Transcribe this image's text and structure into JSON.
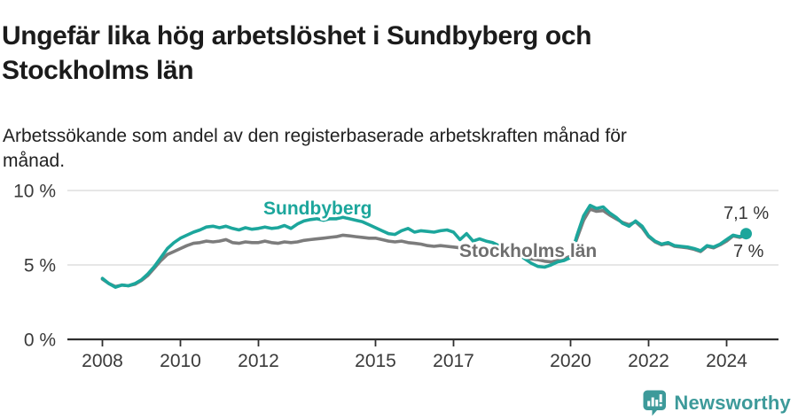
{
  "header": {
    "title_line1": "Ungefär lika hög arbetslöshet i Sundbyberg och",
    "title_line2": "Stockholms län",
    "subtitle_line1": "Arbetssökande som andel av den registerbaserade arbetskraften månad för",
    "subtitle_line2": "månad."
  },
  "footer": {
    "brand": "Newsworthy",
    "brand_color": "#3d9a9a"
  },
  "chart_data": {
    "type": "line",
    "title": "Ungefär lika hög arbetslöshet i Sundbyberg och Stockholms län",
    "subtitle": "Arbetssökande som andel av den registerbaserade arbetskraften månad för månad.",
    "unit": "%",
    "x_start": 2008.0,
    "x_step_years": 0.1666667,
    "x_end": 2024.5,
    "ylim": [
      0,
      10.5
    ],
    "grid": "horizontal",
    "legend_position": "inline-labels",
    "x_ticks": [
      2008,
      2010,
      2012,
      2015,
      2017,
      2020,
      2022,
      2024
    ],
    "y_ticks": [
      {
        "value": 10,
        "label": "10 %"
      },
      {
        "value": 5,
        "label": "5 %"
      },
      {
        "value": 0,
        "label": "0 %"
      }
    ],
    "series": [
      {
        "name": "Sundbyberg",
        "color": "#1ca69c",
        "end_label": "7,1 %",
        "end_value": 7.1,
        "values": [
          4.1,
          3.75,
          3.5,
          3.65,
          3.6,
          3.75,
          4.0,
          4.4,
          4.9,
          5.5,
          6.1,
          6.5,
          6.8,
          7.0,
          7.2,
          7.35,
          7.55,
          7.6,
          7.5,
          7.6,
          7.45,
          7.35,
          7.5,
          7.4,
          7.45,
          7.55,
          7.45,
          7.5,
          7.65,
          7.45,
          7.75,
          7.95,
          8.05,
          8.1,
          8.0,
          8.1,
          8.1,
          8.2,
          8.1,
          8.0,
          7.9,
          7.7,
          7.5,
          7.3,
          7.1,
          7.05,
          7.3,
          7.45,
          7.2,
          7.3,
          7.25,
          7.2,
          7.3,
          7.35,
          7.2,
          6.7,
          7.1,
          6.6,
          6.75,
          6.6,
          6.5,
          6.3,
          6.2,
          6.0,
          5.7,
          5.4,
          5.1,
          4.9,
          4.85,
          5.0,
          5.2,
          5.3,
          5.5,
          7.0,
          8.3,
          9.0,
          8.8,
          8.9,
          8.5,
          8.2,
          7.8,
          7.6,
          7.95,
          7.6,
          6.95,
          6.6,
          6.4,
          6.5,
          6.3,
          6.25,
          6.2,
          6.1,
          5.95,
          6.3,
          6.2,
          6.4,
          6.7,
          7.0,
          6.9,
          7.1
        ]
      },
      {
        "name": "Stockholms län",
        "color": "#7c7c7c",
        "label_color": "#6f6f6f",
        "end_label": "7 %",
        "end_value": 7.0,
        "values": [
          4.05,
          3.75,
          3.55,
          3.65,
          3.6,
          3.7,
          3.95,
          4.3,
          4.8,
          5.3,
          5.7,
          5.9,
          6.1,
          6.3,
          6.45,
          6.5,
          6.6,
          6.55,
          6.6,
          6.7,
          6.5,
          6.45,
          6.55,
          6.5,
          6.5,
          6.6,
          6.5,
          6.45,
          6.55,
          6.5,
          6.55,
          6.65,
          6.7,
          6.75,
          6.8,
          6.85,
          6.9,
          7.0,
          6.95,
          6.9,
          6.85,
          6.8,
          6.8,
          6.7,
          6.6,
          6.55,
          6.6,
          6.5,
          6.45,
          6.4,
          6.3,
          6.25,
          6.3,
          6.25,
          6.2,
          6.15,
          6.1,
          6.1,
          6.05,
          6.0,
          6.0,
          5.95,
          5.85,
          5.75,
          5.6,
          5.5,
          5.4,
          5.35,
          5.25,
          5.2,
          5.3,
          5.4,
          5.6,
          6.8,
          8.0,
          8.75,
          8.6,
          8.65,
          8.35,
          8.1,
          7.85,
          7.7,
          7.9,
          7.5,
          6.9,
          6.55,
          6.35,
          6.45,
          6.25,
          6.2,
          6.15,
          6.05,
          5.9,
          6.25,
          6.15,
          6.35,
          6.6,
          6.95,
          6.85,
          7.0
        ]
      }
    ]
  }
}
